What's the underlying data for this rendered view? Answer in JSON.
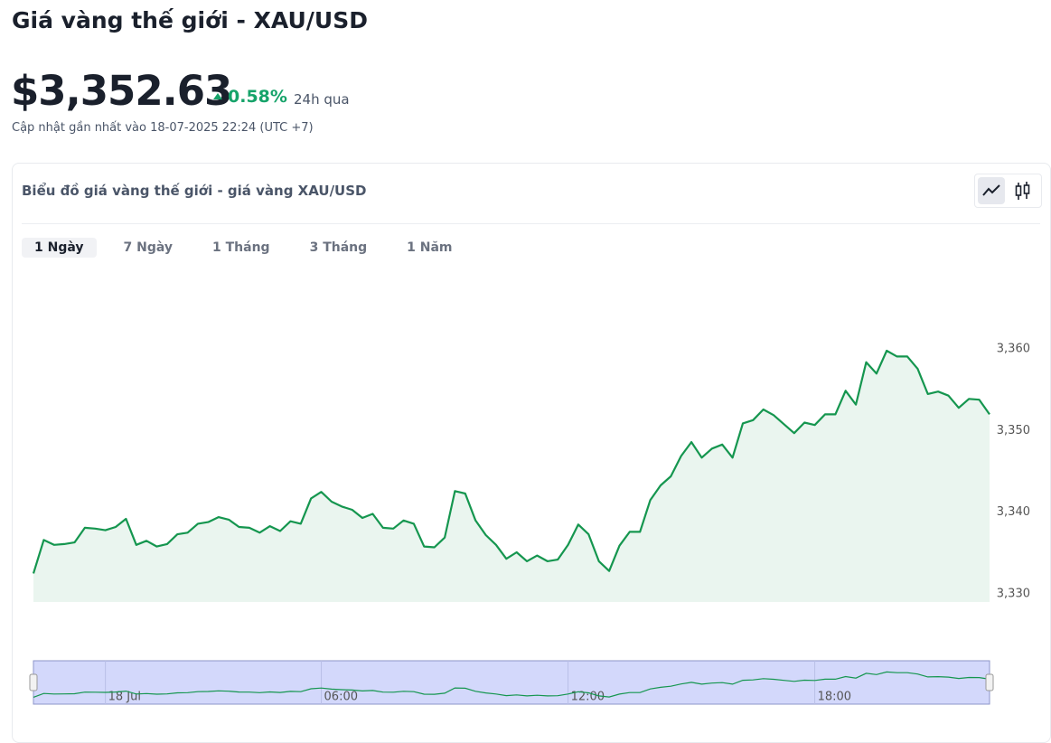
{
  "header": {
    "title": "Giá vàng thế giới - XAU/USD",
    "price": "$3,352.63",
    "change": "0.58%",
    "change_period": "24h qua",
    "updated": "Cập nhật gần nhất vào 18-07-2025 22:24 (UTC +7)"
  },
  "card": {
    "title": "Biểu đồ giá vàng thế giới - giá vàng XAU/USD",
    "tabs": [
      "1 Ngày",
      "7 Ngày",
      "1 Tháng",
      "3 Tháng",
      "1 Năm"
    ]
  },
  "chart_data": {
    "type": "area",
    "color": "#15964f",
    "values": [
      3332.5,
      3336.6,
      3336.0,
      3336.1,
      3336.3,
      3338.1,
      3338.0,
      3337.8,
      3338.2,
      3339.2,
      3336.0,
      3336.5,
      3335.8,
      3336.1,
      3337.3,
      3337.5,
      3338.6,
      3338.8,
      3339.4,
      3339.1,
      3338.2,
      3338.1,
      3337.5,
      3338.3,
      3337.7,
      3338.9,
      3338.6,
      3341.7,
      3342.5,
      3341.3,
      3340.7,
      3340.3,
      3339.3,
      3339.8,
      3338.1,
      3338.0,
      3339.0,
      3338.6,
      3335.8,
      3335.7,
      3336.9,
      3342.6,
      3342.3,
      3339.0,
      3337.2,
      3336.0,
      3334.3,
      3335.1,
      3334.0,
      3334.7,
      3334.0,
      3334.2,
      3336.0,
      3338.5,
      3337.3,
      3334.0,
      3332.8,
      3335.9,
      3337.6,
      3337.6,
      3341.5,
      3343.3,
      3344.4,
      3346.9,
      3348.6,
      3346.7,
      3347.8,
      3348.3,
      3346.7,
      3350.9,
      3351.3,
      3352.6,
      3351.9,
      3350.8,
      3349.7,
      3351.0,
      3350.7,
      3352.0,
      3352.0,
      3354.9,
      3353.2,
      3358.4,
      3357.0,
      3359.8,
      3359.1,
      3359.1,
      3357.6,
      3354.5,
      3354.8,
      3354.3,
      3352.8,
      3353.9,
      3353.8,
      3352.0
    ],
    "xlim": [
      0,
      93
    ],
    "ylim": [
      3329,
      3370
    ],
    "yticks": [
      {
        "value": 3330,
        "label": "3,330"
      },
      {
        "value": 3340,
        "label": "3,340"
      },
      {
        "value": 3350,
        "label": "3,350"
      },
      {
        "value": 3360,
        "label": "3,360"
      }
    ],
    "navigator_xticks": [
      {
        "value": 7,
        "label": "18 Jul"
      },
      {
        "value": 28,
        "label": "06:00"
      },
      {
        "value": 52,
        "label": "12:00"
      },
      {
        "value": 76,
        "label": "18:00"
      }
    ]
  }
}
